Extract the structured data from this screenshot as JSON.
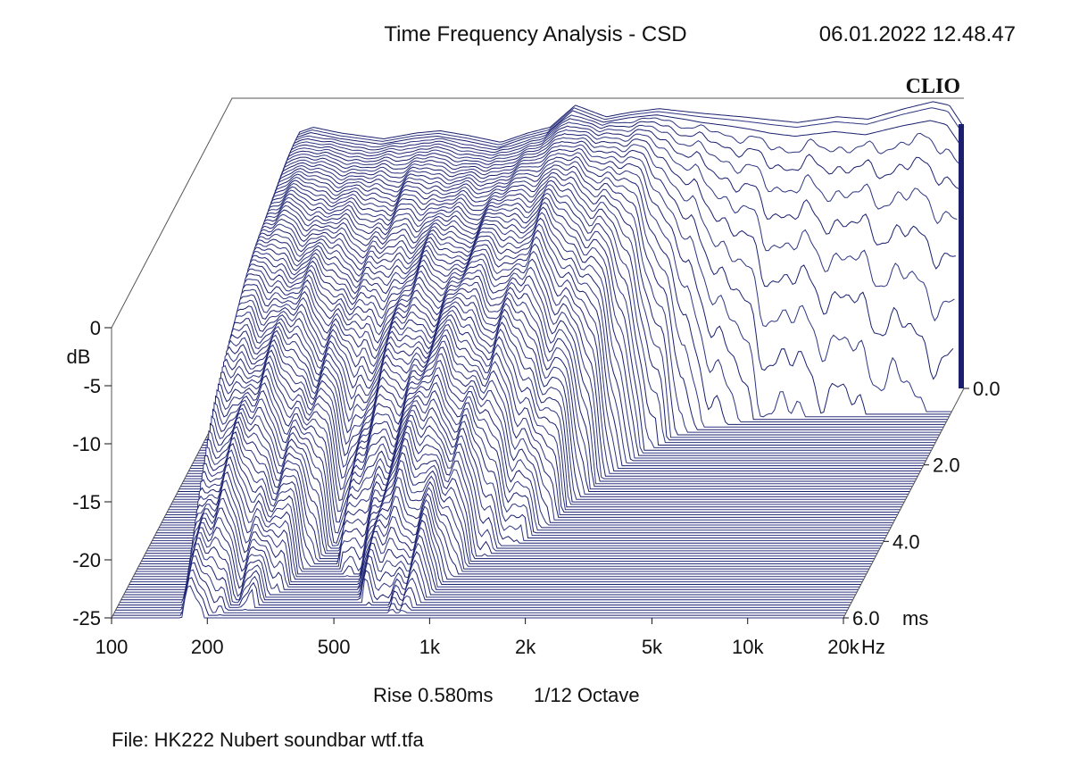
{
  "chart_data": {
    "type": "waterfall",
    "title": "Time Frequency Analysis - CSD",
    "timestamp": "06.01.2022 12.48.47",
    "brand": "CLIO",
    "y_axis": {
      "label": "dB",
      "range": [
        -25,
        0
      ],
      "ticks": [
        {
          "value": 0,
          "label": "0"
        },
        {
          "value": -5,
          "label": "-5"
        },
        {
          "value": -10,
          "label": "-10"
        },
        {
          "value": -15,
          "label": "-15"
        },
        {
          "value": -20,
          "label": "-20"
        },
        {
          "value": -25,
          "label": "-25"
        }
      ]
    },
    "x_axis": {
      "unit": "Hz",
      "scale": "log",
      "range": [
        100,
        20000
      ],
      "ticks": [
        {
          "value": 100,
          "label": "100"
        },
        {
          "value": 200,
          "label": "200"
        },
        {
          "value": 500,
          "label": "500"
        },
        {
          "value": 1000,
          "label": "1k"
        },
        {
          "value": 2000,
          "label": "2k"
        },
        {
          "value": 5000,
          "label": "5k"
        },
        {
          "value": 10000,
          "label": "10k"
        },
        {
          "value": 20000,
          "label": "20k"
        }
      ]
    },
    "z_axis": {
      "unit": "ms",
      "range": [
        0,
        6
      ],
      "ticks": [
        {
          "value": 0,
          "label": "0.0"
        },
        {
          "value": 2,
          "label": "2.0"
        },
        {
          "value": 4,
          "label": "4.0"
        },
        {
          "value": 6,
          "label": "6.0"
        }
      ]
    },
    "slices": 90,
    "rise_label": "Rise 0.580ms",
    "resolution_label": "1/12 Octave",
    "file_label": "File: HK222 Nubert soundbar wtf.tfa",
    "colors": {
      "trace": "#1a1f6e",
      "fill": "#ffffff",
      "floor": "#2e3580"
    },
    "initial_response": [
      {
        "f": 100,
        "db": -25
      },
      {
        "f": 150,
        "db": -25
      },
      {
        "f": 160,
        "db": -3
      },
      {
        "f": 180,
        "db": -2.5
      },
      {
        "f": 220,
        "db": -3
      },
      {
        "f": 300,
        "db": -3.5
      },
      {
        "f": 380,
        "db": -3
      },
      {
        "f": 450,
        "db": -2.8
      },
      {
        "f": 550,
        "db": -3.2
      },
      {
        "f": 700,
        "db": -3.8
      },
      {
        "f": 850,
        "db": -3
      },
      {
        "f": 1000,
        "db": -2.5
      },
      {
        "f": 1200,
        "db": -0.6
      },
      {
        "f": 1500,
        "db": -1.6
      },
      {
        "f": 1800,
        "db": -1.2
      },
      {
        "f": 2200,
        "db": -0.9
      },
      {
        "f": 3000,
        "db": -1.3
      },
      {
        "f": 4000,
        "db": -1.6
      },
      {
        "f": 6000,
        "db": -2.1
      },
      {
        "f": 8000,
        "db": -1.6
      },
      {
        "f": 10000,
        "db": -1.8
      },
      {
        "f": 13000,
        "db": -0.9
      },
      {
        "f": 16000,
        "db": -0.3
      },
      {
        "f": 18000,
        "db": -0.6
      },
      {
        "f": 20000,
        "db": -2.5
      }
    ],
    "decay_time_ms": [
      {
        "f": 100,
        "ms": 0
      },
      {
        "f": 150,
        "ms": 0
      },
      {
        "f": 160,
        "ms": 6.2
      },
      {
        "f": 200,
        "ms": 6.2
      },
      {
        "f": 260,
        "ms": 5.8
      },
      {
        "f": 320,
        "ms": 5.2
      },
      {
        "f": 380,
        "ms": 4.3
      },
      {
        "f": 450,
        "ms": 4.8
      },
      {
        "f": 550,
        "ms": 5.5
      },
      {
        "f": 650,
        "ms": 5.8
      },
      {
        "f": 800,
        "ms": 6.0
      },
      {
        "f": 950,
        "ms": 5.2
      },
      {
        "f": 1100,
        "ms": 4.7
      },
      {
        "f": 1300,
        "ms": 4.3
      },
      {
        "f": 1600,
        "ms": 3.7
      },
      {
        "f": 2000,
        "ms": 2.6
      },
      {
        "f": 2500,
        "ms": 1.7
      },
      {
        "f": 3000,
        "ms": 1.2
      },
      {
        "f": 5000,
        "ms": 0.8
      },
      {
        "f": 10000,
        "ms": 0.7
      },
      {
        "f": 20000,
        "ms": 0.6
      }
    ]
  }
}
